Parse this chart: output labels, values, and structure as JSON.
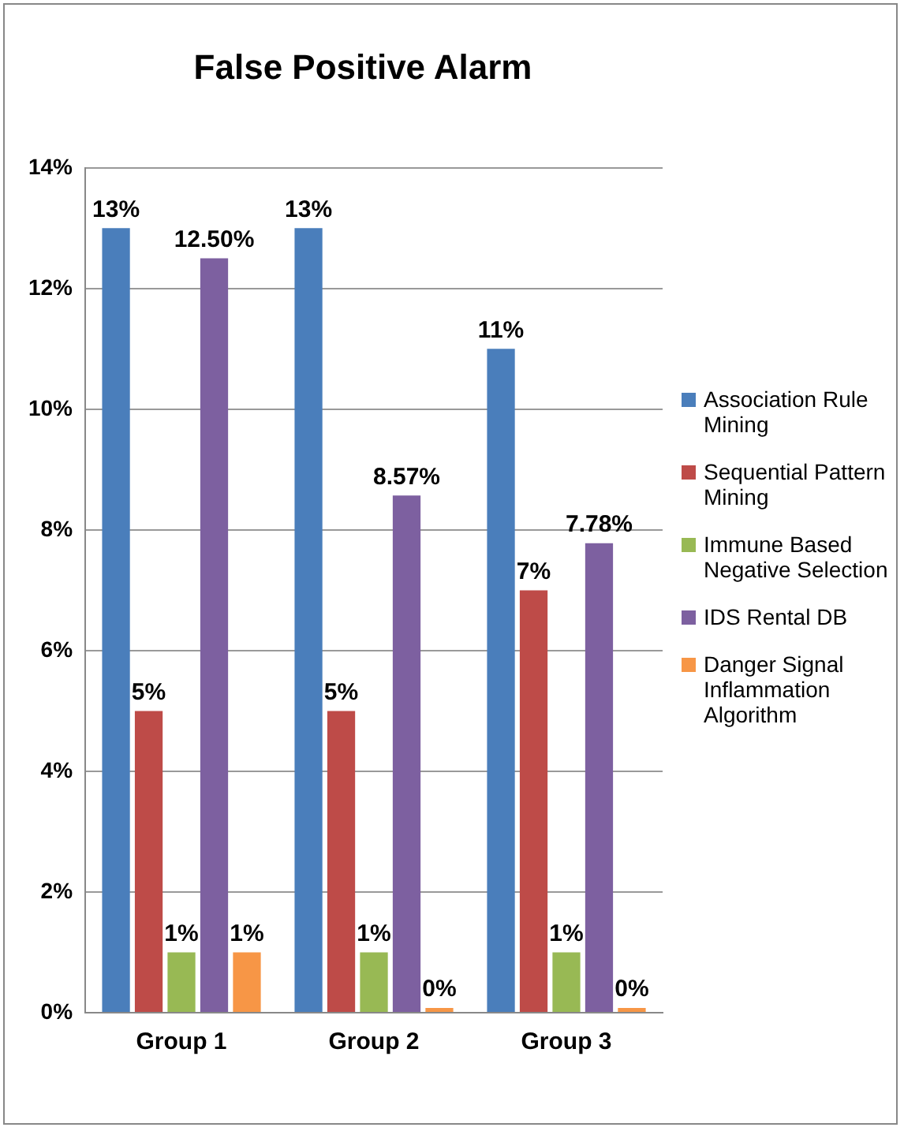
{
  "chart_data": {
    "type": "bar",
    "title": "False Positive Alarm",
    "categories": [
      "Group 1",
      "Group 2",
      "Group 3"
    ],
    "series": [
      {
        "name": "Association Rule Mining",
        "color": "#4a7ebb",
        "values": [
          13,
          13,
          11
        ],
        "value_labels": [
          "13%",
          "13%",
          "11%"
        ]
      },
      {
        "name": "Sequential Pattern Mining",
        "color": "#be4b48",
        "values": [
          5,
          5,
          7
        ],
        "value_labels": [
          "5%",
          "5%",
          "7%"
        ]
      },
      {
        "name": "Immune Based Negative Selection",
        "color": "#98b954",
        "values": [
          1,
          1,
          1
        ],
        "value_labels": [
          "1%",
          "1%",
          "1%"
        ]
      },
      {
        "name": "IDS Rental DB",
        "color": "#7d60a0",
        "values": [
          12.5,
          8.57,
          7.78
        ],
        "value_labels": [
          "12.50%",
          "8.57%",
          "7.78%"
        ]
      },
      {
        "name": "Danger Signal Inflammation Algorithm",
        "color": "#f79646",
        "values": [
          1,
          0,
          0
        ],
        "value_labels": [
          "1%",
          "0%",
          "0%"
        ]
      }
    ],
    "ylim": [
      0,
      14
    ],
    "yticks": [
      {
        "value": 0,
        "label": "0%"
      },
      {
        "value": 2,
        "label": "2%"
      },
      {
        "value": 4,
        "label": "4%"
      },
      {
        "value": 6,
        "label": "6%"
      },
      {
        "value": 8,
        "label": "8%"
      },
      {
        "value": 10,
        "label": "10%"
      },
      {
        "value": 12,
        "label": "12%"
      },
      {
        "value": 14,
        "label": "14%"
      }
    ],
    "grid": "y",
    "legend": "right"
  }
}
